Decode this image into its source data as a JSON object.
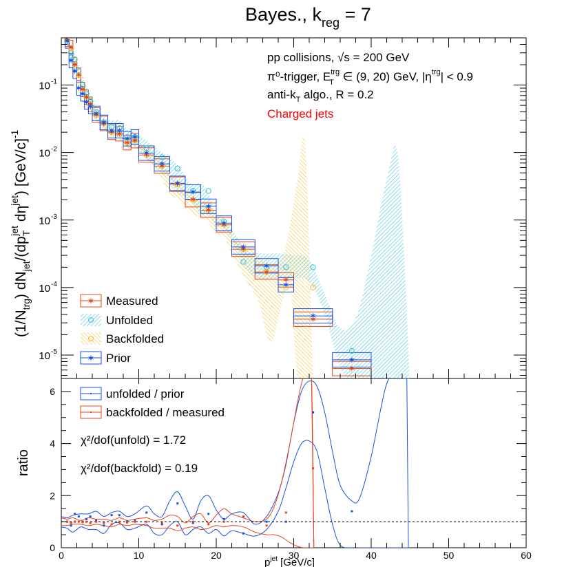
{
  "title": "Bayes., k",
  "title_sub": "reg",
  "title_tail": " = 7",
  "annotations": {
    "line1": "pp collisions, √s = 200 GeV",
    "line2": "π⁰-trigger, E",
    "line2_sup": "trg",
    "line2_sub": "T",
    "line2_tail": " ∈ (9, 20) GeV, |η",
    "line2_sup2": "trg",
    "line2_tail2": "| < 0.9",
    "line3": "anti-k",
    "line3_sub": "T",
    "line3_tail": " algo., R = 0.2",
    "line4": "Charged jets",
    "line4_color": "#ff0000"
  },
  "upper_ylabel": "(1/N_trg) dN_jet/(dp_T^jet dη^jet) [GeV/c]^-1",
  "lower_ylabel": "ratio",
  "xlabel": "p_T^jet [GeV/c]",
  "legend_upper": [
    "Measured",
    "Unfolded",
    "Backfolded",
    "Prior"
  ],
  "legend_lower": [
    "unfolded / prior",
    "backfolded / measured"
  ],
  "chi2": {
    "unfold": "χ²/dof(unfold) = 1.72",
    "backfold": "χ²/dof(backfold) = 0.19"
  },
  "colors": {
    "measured": "#e8421a",
    "unfolded": "#3cc8dc",
    "backfolded": "#f0c030",
    "prior": "#1450e6",
    "ratio_unfold": "#1450e6",
    "ratio_backfold": "#e8421a"
  },
  "chart_data": [
    {
      "type": "scatter",
      "panel": "upper",
      "ylog": true,
      "xlim": [
        0,
        60
      ],
      "ylim": [
        4.5e-06,
        0.5
      ],
      "xticks": [
        0,
        10,
        20,
        30,
        40,
        50,
        60
      ],
      "yticks": [
        {
          "v": 0.1,
          "label": "10",
          "exp": "-1"
        },
        {
          "v": 0.01,
          "label": "10",
          "exp": "-2"
        },
        {
          "v": 0.001,
          "label": "10",
          "exp": "-3"
        },
        {
          "v": 0.0001,
          "label": "10",
          "exp": "-4"
        },
        {
          "v": 1e-05,
          "label": "10",
          "exp": "-5"
        }
      ],
      "bin_edges": [
        0.5,
        1,
        1.5,
        2,
        2.5,
        3,
        3.5,
        4,
        5,
        6,
        7,
        8,
        9,
        10,
        12,
        14,
        16,
        18,
        20,
        22,
        25,
        28,
        30,
        35,
        40
      ],
      "series": [
        {
          "name": "Measured",
          "marker": "star",
          "x": [
            0.75,
            1.25,
            1.75,
            2.25,
            2.75,
            3.25,
            3.75,
            4.5,
            5.5,
            6.5,
            7.5,
            8.5,
            9.5,
            11,
            13,
            15,
            17,
            19,
            21,
            23.5,
            26.5,
            29,
            32.5,
            37.5
          ],
          "y": [
            0.48,
            0.36,
            0.2,
            0.14,
            0.086,
            0.066,
            0.052,
            0.036,
            0.027,
            0.02,
            0.019,
            0.014,
            0.015,
            0.0092,
            0.0063,
            0.0034,
            0.002,
            0.0014,
            0.00085,
            0.00037,
            0.00017,
            0.00013,
            3.4e-05,
            6.3e-06
          ]
        },
        {
          "name": "Unfolded",
          "marker": "circle",
          "x": [
            0.75,
            1.25,
            1.75,
            2.25,
            2.75,
            3.25,
            3.75,
            4.5,
            5.5,
            6.5,
            7.5,
            8.5,
            9.5,
            11,
            13,
            15,
            17,
            19,
            21,
            23.5,
            26.5,
            29,
            32.5,
            37.5
          ],
          "y": [
            0.45,
            0.3,
            0.24,
            0.16,
            0.1,
            0.075,
            0.058,
            0.04,
            0.028,
            0.024,
            0.023,
            0.017,
            0.017,
            0.0115,
            0.0085,
            0.0058,
            0.0027,
            0.0027,
            0.00095,
            0.00024,
            0.0002,
            0.0002,
            0.0002,
            1.15e-05
          ]
        },
        {
          "name": "Backfolded",
          "marker": "circle-open",
          "x": [
            0.75,
            1.25,
            1.75,
            2.25,
            2.75,
            3.25,
            3.75,
            4.5,
            5.5,
            6.5,
            7.5,
            8.5,
            9.5,
            11,
            13,
            15,
            17,
            19,
            21,
            23.5,
            26.5,
            29,
            32.5
          ],
          "y": [
            0.47,
            0.35,
            0.2,
            0.14,
            0.085,
            0.065,
            0.052,
            0.036,
            0.027,
            0.02,
            0.019,
            0.014,
            0.015,
            0.0092,
            0.0063,
            0.0034,
            0.002,
            0.0014,
            0.00085,
            0.00037,
            0.00017,
            0.0001,
            0.0001
          ]
        },
        {
          "name": "Prior",
          "marker": "star",
          "x": [
            0.75,
            1.25,
            1.75,
            2.25,
            2.75,
            3.25,
            3.75,
            4.5,
            5.5,
            6.5,
            7.5,
            8.5,
            9.5,
            11,
            13,
            15,
            17,
            19,
            21,
            23.5,
            26.5,
            29,
            32.5,
            37.5
          ],
          "y": [
            0.45,
            0.23,
            0.16,
            0.09,
            0.074,
            0.056,
            0.048,
            0.038,
            0.028,
            0.021,
            0.021,
            0.016,
            0.017,
            0.0098,
            0.0068,
            0.0035,
            0.0026,
            0.0016,
            0.0009,
            0.0004,
            0.00021,
            0.00011,
            3.8e-05,
            8.5e-06
          ]
        }
      ],
      "bands": [
        {
          "name": "Unfolded",
          "x": [
            0.75,
            1.25,
            2.25,
            3.25,
            4.5,
            5.5,
            6.5,
            7.5,
            8.5,
            9.5,
            11,
            12.5,
            14,
            15,
            16,
            17,
            18,
            19,
            20,
            21,
            22.5,
            24,
            26,
            28,
            30,
            32,
            34,
            36,
            38,
            40,
            42,
            43.5,
            45
          ],
          "hi": [
            0.55,
            0.4,
            0.2,
            0.095,
            0.05,
            0.034,
            0.03,
            0.03,
            0.022,
            0.02,
            0.015,
            0.011,
            0.0085,
            0.0065,
            0.0045,
            0.0033,
            0.0035,
            0.0025,
            0.0012,
            0.0011,
            0.0006,
            0.00035,
            0.00032,
            0.00032,
            0.0003,
            0.00026,
            8e-05,
            2.5e-05,
            3.5e-05,
            0.0003,
            0.004,
            0.008,
            4e-06
          ],
          "lo": [
            0.38,
            0.22,
            0.13,
            0.06,
            0.03,
            0.022,
            0.018,
            0.017,
            0.012,
            0.012,
            0.008,
            0.0055,
            0.004,
            0.0025,
            0.0022,
            0.0018,
            0.0012,
            0.0012,
            0.0008,
            0.00075,
            0.0004,
            0.00018,
            0.00013,
            0.00014,
            0.00014,
            0.00012,
            4e-05,
            6.5e-06,
            4e-06,
            4e-06,
            4e-06,
            4e-06,
            4e-06
          ]
        },
        {
          "name": "Backfolded",
          "x": [
            0.75,
            1.25,
            2.25,
            3.25,
            4.5,
            5.5,
            6.5,
            7.5,
            8.5,
            9.5,
            11,
            12.5,
            14,
            15,
            16,
            17,
            18,
            19,
            20,
            21,
            22.5,
            24,
            25.5,
            27,
            28.5,
            29.5,
            30.5,
            31.5,
            32.5
          ],
          "hi": [
            0.55,
            0.4,
            0.17,
            0.075,
            0.042,
            0.03,
            0.024,
            0.023,
            0.017,
            0.018,
            0.011,
            0.008,
            0.0045,
            0.0038,
            0.0028,
            0.0024,
            0.0019,
            0.0017,
            0.0011,
            0.001,
            0.0005,
            0.00045,
            0.0003,
            0.00022,
            0.00028,
            0.0008,
            0.004,
            0.012,
            4e-06
          ],
          "lo": [
            0.38,
            0.25,
            0.11,
            0.055,
            0.03,
            0.022,
            0.016,
            0.015,
            0.011,
            0.012,
            0.0075,
            0.005,
            0.0025,
            0.002,
            0.0015,
            0.0012,
            0.0011,
            0.0009,
            0.0006,
            0.00055,
            0.00025,
            0.00012,
            6e-05,
            1.5e-05,
            6e-05,
            0.00012,
            4e-06,
            4e-06,
            4e-06
          ]
        }
      ]
    },
    {
      "type": "line",
      "panel": "lower",
      "xlim": [
        0,
        60
      ],
      "ylim": [
        0,
        6.5
      ],
      "xticks": [
        0,
        10,
        20,
        30,
        40,
        50,
        60
      ],
      "yticks": [
        0,
        2,
        4,
        6
      ],
      "reference_line": 1,
      "series": [
        {
          "name": "unfolded / prior",
          "x": [
            0.75,
            1.25,
            1.75,
            2.25,
            2.75,
            3.25,
            3.75,
            4.5,
            5.5,
            6.5,
            7.5,
            8.5,
            9.5,
            11,
            13,
            15,
            17,
            19,
            21,
            23.5,
            26.5,
            29,
            32.5,
            37.5
          ],
          "y": [
            1.0,
            0.85,
            1.3,
            1.2,
            1.0,
            1.1,
            1.2,
            1.05,
            0.85,
            1.25,
            1.25,
            1.0,
            1.05,
            1.35,
            0.9,
            1.7,
            0.95,
            1.3,
            1.1,
            0.55,
            1.0,
            1.0,
            5.2,
            1.4
          ]
        },
        {
          "name": "backfolded / measured",
          "x": [
            0.75,
            1.25,
            1.75,
            2.25,
            2.75,
            3.25,
            3.75,
            4.5,
            5.5,
            6.5,
            7.5,
            8.5,
            9.5,
            11,
            13,
            15,
            17,
            19,
            21,
            23.5,
            26.5,
            29,
            32.5
          ],
          "y": [
            1.0,
            0.95,
            1.0,
            1.0,
            0.98,
            1.0,
            0.95,
            1.0,
            0.95,
            0.9,
            1.0,
            0.97,
            1.0,
            1.0,
            0.95,
            0.85,
            1.0,
            0.9,
            1.0,
            1.2,
            0.85,
            1.35,
            3.05
          ]
        }
      ],
      "bands": [
        {
          "name": "unfolded / prior",
          "x": [
            0,
            0.75,
            1.5,
            2.5,
            3.5,
            4.5,
            5.5,
            6.5,
            7.5,
            8.5,
            9.5,
            11,
            12,
            13,
            14,
            15,
            16,
            17,
            18,
            19,
            20,
            21,
            22,
            23.5,
            25,
            26.5,
            28,
            29,
            30,
            31,
            32,
            33,
            34,
            35,
            36,
            37.5,
            38.5,
            40,
            42,
            43.5,
            44.5,
            45
          ],
          "hi": [
            1.2,
            1.15,
            1.25,
            1.3,
            1.3,
            1.4,
            1.2,
            1.35,
            1.4,
            1.2,
            1.3,
            1.6,
            1.3,
            1.2,
            1.8,
            2.15,
            1.6,
            1.1,
            1.8,
            2.0,
            1.45,
            1.1,
            1.3,
            1.35,
            0.9,
            1.2,
            2.1,
            3.2,
            4.8,
            6.0,
            6.4,
            6.2,
            5.2,
            3.7,
            2.4,
            1.8,
            1.9,
            3.5,
            6.3,
            6.5,
            6.5,
            6.5
          ],
          "lo": [
            0.8,
            0.75,
            0.6,
            0.8,
            0.7,
            0.7,
            0.55,
            0.9,
            0.95,
            0.7,
            0.75,
            0.9,
            0.55,
            0.5,
            0.85,
            1.0,
            0.5,
            0.7,
            0.8,
            0.55,
            0.7,
            0.45,
            0.65,
            0.55,
            0.45,
            0.7,
            1.4,
            2.3,
            3.3,
            4.0,
            4.1,
            3.7,
            2.3,
            0.9,
            0.1,
            0,
            0,
            0,
            0,
            0,
            0,
            0
          ]
        },
        {
          "name": "backfolded / measured",
          "x": [
            0,
            0.75,
            1.5,
            2.5,
            3.5,
            4.5,
            5.5,
            6.5,
            7.5,
            8.5,
            9.5,
            11,
            12,
            13,
            14,
            15,
            16,
            17,
            18,
            19,
            20,
            21,
            22,
            23.5,
            25,
            26.5,
            27.5,
            28.5,
            29.5,
            30.5,
            31.2,
            31.8,
            32.3,
            32.6
          ],
          "hi": [
            1.15,
            1.1,
            1.15,
            1.05,
            1.15,
            1.1,
            1.1,
            1.05,
            1.15,
            1.05,
            1.1,
            1.15,
            1.05,
            1.1,
            1.25,
            1.2,
            0.95,
            1.2,
            1.3,
            0.95,
            1.25,
            1.5,
            1.3,
            1.15,
            1.0,
            1.1,
            1.6,
            2.6,
            4.0,
            5.6,
            6.5,
            6.5,
            6.5,
            0
          ],
          "lo": [
            0.85,
            0.85,
            0.9,
            0.9,
            0.85,
            0.9,
            0.85,
            0.8,
            0.9,
            0.85,
            0.9,
            0.85,
            0.75,
            0.75,
            0.75,
            0.65,
            0.75,
            0.8,
            0.7,
            0.75,
            0.85,
            0.8,
            0.85,
            0.8,
            0.6,
            0.5,
            0.5,
            0.4,
            0.2,
            0.05,
            0,
            0,
            0,
            0
          ]
        }
      ]
    }
  ]
}
